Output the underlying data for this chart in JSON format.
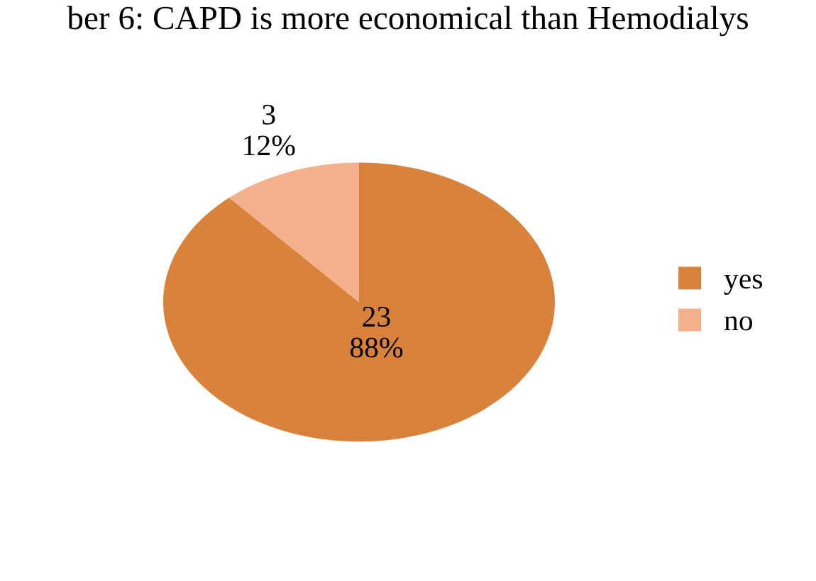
{
  "chart_data": {
    "type": "pie",
    "title": "ber 6: CAPD is more economical than Hemodialys",
    "categories": [
      "yes",
      "no"
    ],
    "values": [
      23,
      3
    ],
    "colors": [
      "#d9823b",
      "#f4b08a"
    ],
    "value_labels": [
      "23\n88%",
      "3\n12%"
    ],
    "legend": "right"
  }
}
